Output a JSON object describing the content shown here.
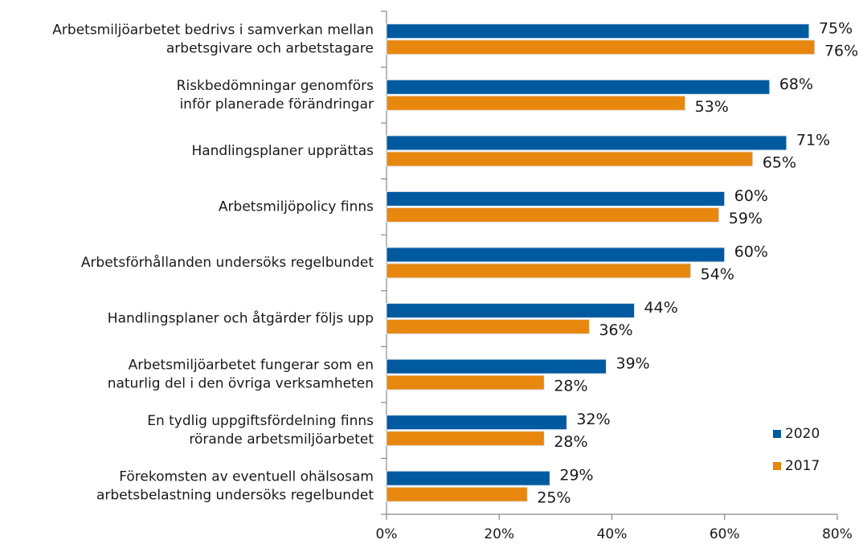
{
  "chart_data": {
    "type": "bar",
    "orientation": "horizontal",
    "categories": [
      "Arbetsmiljöarbetet bedrivs i samverkan mellan\narbetsgivare och arbetstagare",
      "Riskbedömningar genomförs\ninför planerade förändringar",
      "Handlingsplaner upprättas",
      "Arbetsmiljöpolicy finns",
      "Arbetsförhållanden undersöks regelbundet",
      "Handlingsplaner och åtgärder följs upp",
      "Arbetsmiljöarbetet fungerar som en\nnaturlig del i den övriga verksamheten",
      "En tydlig uppgiftsfördelning finns\nrörande arbetsmiljöarbetet",
      "Förekomsten av eventuell ohälsosam\narbetsbelastning undersöks regelbundet"
    ],
    "series": [
      {
        "name": "2020",
        "color": "#005aa0",
        "values": [
          75,
          68,
          71,
          60,
          60,
          44,
          39,
          32,
          29
        ],
        "value_labels": [
          "75%",
          "68%",
          "71%",
          "60%",
          "60%",
          "44%",
          "39%",
          "32%",
          "29%"
        ]
      },
      {
        "name": "2017",
        "color": "#e8870e",
        "values": [
          76,
          53,
          65,
          59,
          54,
          36,
          28,
          28,
          25
        ],
        "value_labels": [
          "76%",
          "53%",
          "65%",
          "59%",
          "54%",
          "36%",
          "28%",
          "28%",
          "25%"
        ]
      }
    ],
    "xlim": [
      0,
      80
    ],
    "xticks": [
      {
        "value": 0,
        "label": "0%"
      },
      {
        "value": 20,
        "label": "20%"
      },
      {
        "value": 40,
        "label": "40%"
      },
      {
        "value": 60,
        "label": "60%"
      },
      {
        "value": 80,
        "label": "80%"
      }
    ],
    "legend": "lower right"
  }
}
